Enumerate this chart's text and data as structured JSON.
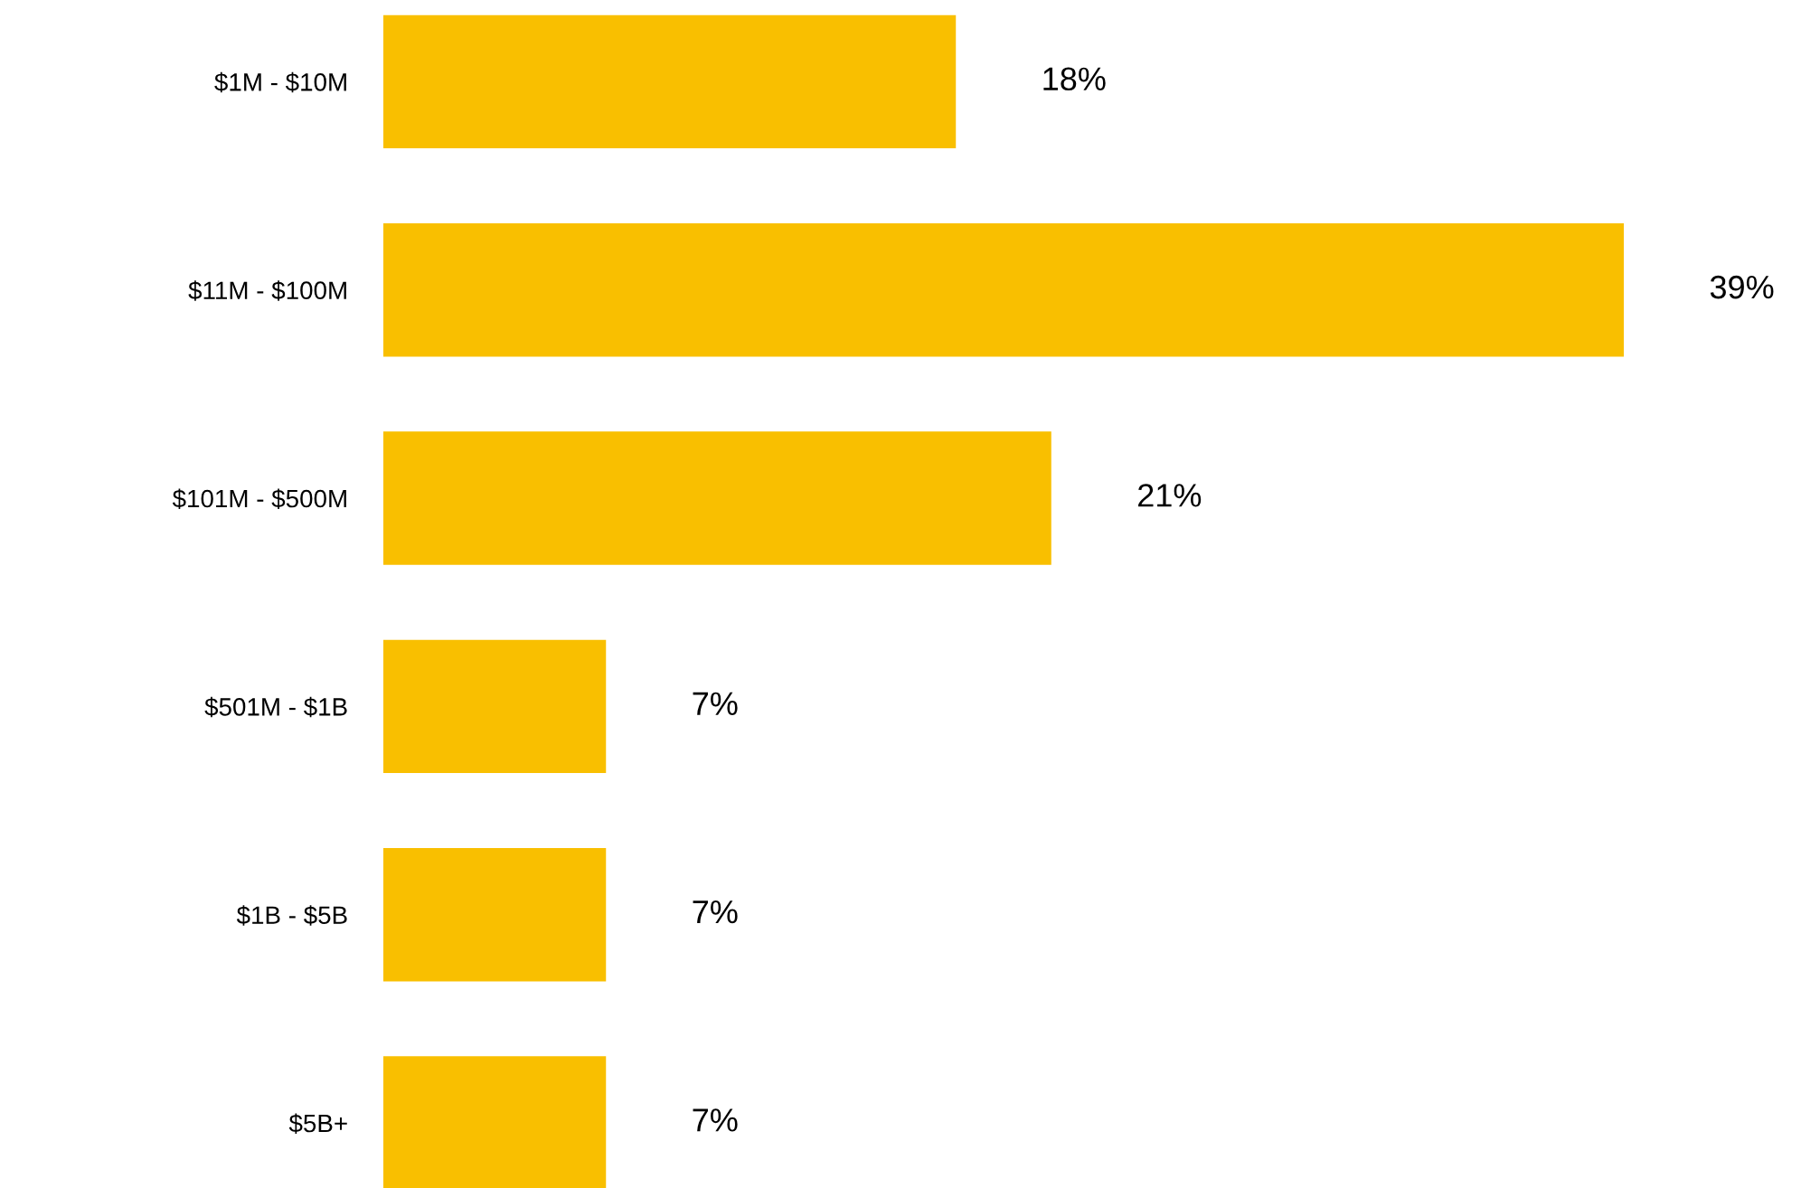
{
  "chart_data": {
    "type": "bar",
    "orientation": "horizontal",
    "categories": [
      "$1M - $10M",
      "$11M - $100M",
      "$101M - $500M",
      "$501M - $1B",
      "$1B - $5B",
      "$5B+"
    ],
    "values": [
      18,
      39,
      21,
      7,
      7,
      7
    ],
    "value_labels": [
      "18%",
      "39%",
      "21%",
      "7%",
      "7%",
      "7%"
    ],
    "color": "#f9bf00",
    "grid": false,
    "legend": false
  }
}
